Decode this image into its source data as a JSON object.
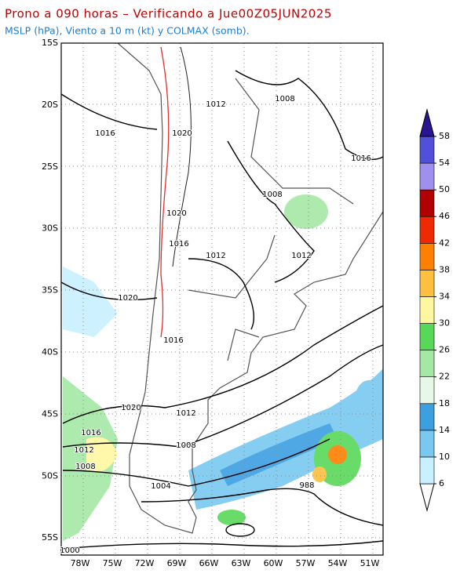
{
  "title": "Prono a 090 horas – Verificando a Jue00Z05JUN2025",
  "subtitle": "MSLP (hPa), Viento a 10 m (kt) y COLMAX (somb).",
  "lat_labels": [
    "15S",
    "20S",
    "25S",
    "30S",
    "35S",
    "40S",
    "45S",
    "50S",
    "55S"
  ],
  "lon_labels": [
    "78W",
    "75W",
    "72W",
    "69W",
    "66W",
    "63W",
    "60W",
    "57W",
    "54W",
    "51W"
  ],
  "colorbar": {
    "levels": [
      6,
      10,
      14,
      18,
      22,
      26,
      30,
      34,
      38,
      42,
      46,
      50,
      54,
      58
    ],
    "colors": [
      "#ffffff",
      "#c8f0ff",
      "#78c8f0",
      "#3c9fe0",
      "#e8f8e8",
      "#a5e8a5",
      "#58d858",
      "#fff7a0",
      "#ffbf40",
      "#ff7f00",
      "#ee2a00",
      "#b00000",
      "#9f8fef",
      "#5050d8",
      "#2a1590"
    ]
  },
  "isobar_labels": [
    "1012",
    "1008",
    "1016",
    "1020",
    "1016",
    "1008",
    "1020",
    "1016",
    "1012",
    "1012",
    "1020",
    "1016",
    "1020",
    "1012",
    "1016",
    "1012",
    "1008",
    "1008",
    "1004",
    "988",
    "1000"
  ]
}
